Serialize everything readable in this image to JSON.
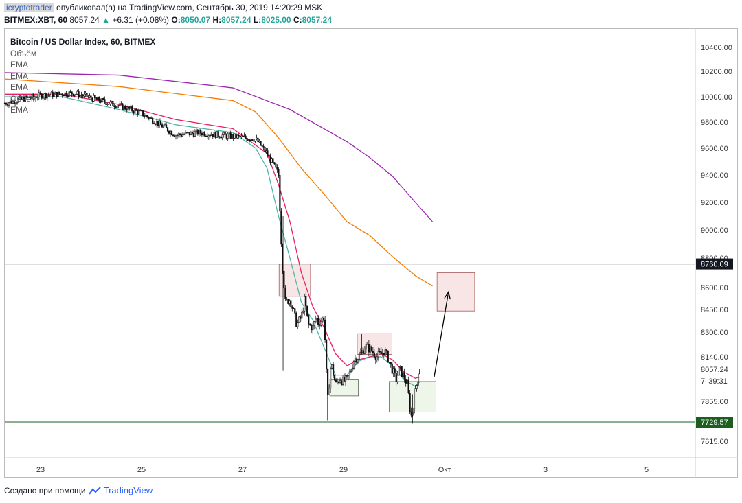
{
  "header": {
    "author": "icryptotrader",
    "publish_text": "опубликовал(а) на TradingView.com, Сентябрь 30, 2019 14:20:29 MSK",
    "symbol": "BITMEX:XBT, 60",
    "last": "8057.24",
    "change": "+6.31 (+0.08%)",
    "o_label": "O:",
    "o": "8050.07",
    "h_label": "H:",
    "h": "8057.24",
    "l_label": "L:",
    "l": "8025.00",
    "c_label": "C:",
    "c": "8057.24"
  },
  "legend": {
    "title": "Bitcoin / US Dollar Index, 60, BITMEX",
    "items": [
      "Объём",
      "EMA",
      "EMA",
      "EMA",
      "Объём",
      "EMA"
    ]
  },
  "footer": {
    "created_with": "Создано при помощи",
    "brand": "TradingView"
  },
  "colors": {
    "ema_pink": "#e91e63",
    "ema_teal": "#4db6ac",
    "ema_orange": "#f57c00",
    "ema_purple": "#9c27b0",
    "resistance": "#000000",
    "support": "#1b5e20",
    "zone_red": "#f8e6e6",
    "zone_green": "#eef6ea"
  },
  "chart_data": {
    "type": "candlestick",
    "x_tick_labels": [
      "23",
      "25",
      "27",
      "29",
      "Окт",
      "3",
      "5"
    ],
    "y_tick_labels": [
      "10400.00",
      "10200.00",
      "10000.00",
      "9800.00",
      "9600.00",
      "9400.00",
      "9200.00",
      "9000.00",
      "8800.00",
      "8600.00",
      "8450.00",
      "8300.00",
      "8140.00",
      "7855.00",
      "7615.00"
    ],
    "y_ticks": [
      10400,
      10200,
      10000,
      9800,
      9600,
      9400,
      9200,
      9000,
      8800,
      8600,
      8450,
      8300,
      8140,
      7855,
      7615
    ],
    "price_badges": [
      {
        "label": "8760.09",
        "value": 8760.09,
        "style": "dark"
      },
      {
        "label": "7729.57",
        "value": 7729.57,
        "style": "green"
      }
    ],
    "last_price_label": "8057.24",
    "countdown_label": "39:31",
    "horizontal_levels": [
      {
        "value": 8760.09,
        "color": "#000000"
      },
      {
        "value": 7729.57,
        "color": "#1b5e20"
      }
    ],
    "candle_keypoints": [
      [
        0,
        9950
      ],
      [
        3,
        10010
      ],
      [
        6,
        10030
      ],
      [
        8,
        9980
      ],
      [
        10,
        9930
      ],
      [
        12,
        9870
      ],
      [
        14,
        9760
      ],
      [
        15,
        9700
      ],
      [
        17,
        9720
      ],
      [
        19,
        9700
      ],
      [
        20,
        9690
      ],
      [
        22,
        9670
      ],
      [
        23,
        9560
      ],
      [
        24,
        9400
      ],
      [
        24.3,
        8800
      ],
      [
        24.6,
        8500
      ],
      [
        25,
        8520
      ],
      [
        25.3,
        8440
      ],
      [
        25.6,
        8350
      ],
      [
        26,
        8400
      ],
      [
        26.3,
        8520
      ],
      [
        26.6,
        8350
      ],
      [
        27,
        8330
      ],
      [
        27.3,
        8400
      ],
      [
        27.5,
        8360
      ],
      [
        28,
        8400
      ],
      [
        28.3,
        7850
      ],
      [
        28.6,
        8100
      ],
      [
        29,
        7960
      ],
      [
        29.4,
        8000
      ],
      [
        29.6,
        7980
      ],
      [
        30,
        7990
      ],
      [
        30.3,
        8040
      ],
      [
        30.6,
        8120
      ],
      [
        31,
        8140
      ],
      [
        31.3,
        8170
      ],
      [
        31.6,
        8210
      ],
      [
        32,
        8190
      ],
      [
        32.3,
        8170
      ],
      [
        32.6,
        8140
      ],
      [
        33,
        8160
      ],
      [
        33.3,
        8180
      ],
      [
        33.6,
        8130
      ],
      [
        34,
        8050
      ],
      [
        34.3,
        7990
      ],
      [
        34.6,
        8060
      ],
      [
        35,
        8010
      ],
      [
        35.3,
        7960
      ],
      [
        35.6,
        7760
      ],
      [
        35.8,
        7800
      ],
      [
        36,
        7910
      ],
      [
        36.2,
        7990
      ],
      [
        36.4,
        8057
      ]
    ],
    "ema_series": [
      {
        "color": "#4db6ac",
        "points": [
          [
            0,
            10000
          ],
          [
            5,
            10000
          ],
          [
            10,
            9900
          ],
          [
            15,
            9780
          ],
          [
            20,
            9720
          ],
          [
            22,
            9600
          ],
          [
            23,
            9450
          ],
          [
            24,
            9100
          ],
          [
            25,
            8800
          ],
          [
            26,
            8500
          ],
          [
            27,
            8380
          ],
          [
            28,
            8200
          ],
          [
            29,
            8020
          ],
          [
            30,
            8020
          ],
          [
            31,
            8110
          ],
          [
            32,
            8140
          ],
          [
            33,
            8140
          ],
          [
            34,
            8080
          ],
          [
            35,
            7990
          ],
          [
            36,
            7950
          ],
          [
            36.4,
            7980
          ]
        ]
      },
      {
        "color": "#e91e63",
        "points": [
          [
            0,
            10020
          ],
          [
            5,
            10020
          ],
          [
            10,
            9940
          ],
          [
            15,
            9820
          ],
          [
            20,
            9750
          ],
          [
            23,
            9560
          ],
          [
            24,
            9330
          ],
          [
            25,
            9060
          ],
          [
            26,
            8700
          ],
          [
            27,
            8470
          ],
          [
            28,
            8330
          ],
          [
            29,
            8160
          ],
          [
            30,
            8080
          ],
          [
            31,
            8120
          ],
          [
            32,
            8140
          ],
          [
            33,
            8160
          ],
          [
            34,
            8120
          ],
          [
            35,
            8040
          ],
          [
            36,
            8000
          ],
          [
            36.4,
            8010
          ]
        ]
      },
      {
        "color": "#f57c00",
        "points": [
          [
            0,
            10140
          ],
          [
            10,
            10080
          ],
          [
            20,
            9970
          ],
          [
            22,
            9880
          ],
          [
            24,
            9680
          ],
          [
            26,
            9450
          ],
          [
            28,
            9260
          ],
          [
            30,
            9060
          ],
          [
            32,
            8960
          ],
          [
            34,
            8810
          ],
          [
            36,
            8680
          ],
          [
            37.5,
            8610
          ]
        ]
      },
      {
        "color": "#9c27b0",
        "points": [
          [
            0,
            10190
          ],
          [
            10,
            10170
          ],
          [
            20,
            10070
          ],
          [
            25,
            9900
          ],
          [
            30,
            9650
          ],
          [
            32,
            9530
          ],
          [
            34,
            9390
          ],
          [
            36,
            9200
          ],
          [
            37.5,
            9060
          ]
        ]
      }
    ],
    "zones": [
      {
        "type": "red",
        "x": [
          24.05,
          26.8
        ],
        "y": [
          8540,
          8760
        ]
      },
      {
        "type": "green",
        "x": [
          28.5,
          31.0
        ],
        "y": [
          7890,
          7990
        ]
      },
      {
        "type": "red",
        "x": [
          30.9,
          33.95
        ],
        "y": [
          8155,
          8290
        ]
      },
      {
        "type": "green",
        "x": [
          33.7,
          37.8
        ],
        "y": [
          7790,
          7980
        ]
      },
      {
        "type": "red",
        "x": [
          37.9,
          41.2
        ],
        "y": [
          8440,
          8700
        ]
      }
    ],
    "arrow": {
      "from": [
        37.65,
        8010
      ],
      "to": [
        38.9,
        8570
      ]
    }
  }
}
